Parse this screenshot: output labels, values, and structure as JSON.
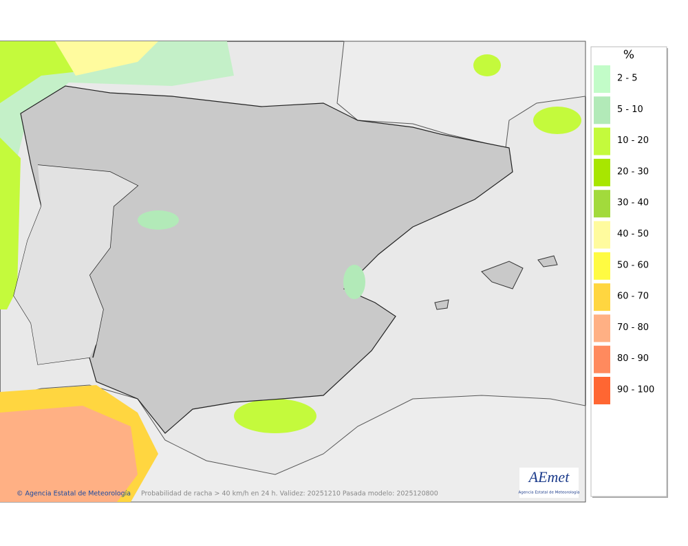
{
  "map": {
    "footer_credit": "© Agencia Estatal de Meteorología",
    "caption": "Probabilidad de racha > 40 km/h en 24 h. Validez: 20251210 Pasada modelo: 2025120800",
    "logo": {
      "name": "AEmet",
      "subtitle": "Agencia Estatal de Meteorología"
    }
  },
  "legend": {
    "title": "%",
    "items": [
      {
        "label": "2 - 5",
        "color": "#c2fcc8"
      },
      {
        "label": "5 - 10",
        "color": "#b2eab8"
      },
      {
        "label": "10 - 20",
        "color": "#c4fa3c"
      },
      {
        "label": "20 - 30",
        "color": "#a8e600"
      },
      {
        "label": "30 - 40",
        "color": "#a2da3c"
      },
      {
        "label": "40 - 50",
        "color": "#fffb9e"
      },
      {
        "label": "50 - 60",
        "color": "#fffb42"
      },
      {
        "label": "60 - 70",
        "color": "#ffd640"
      },
      {
        "label": "70 - 80",
        "color": "#ffb084"
      },
      {
        "label": "80 - 90",
        "color": "#ff8a5e"
      },
      {
        "label": "90 - 100",
        "color": "#ff6632"
      }
    ]
  }
}
